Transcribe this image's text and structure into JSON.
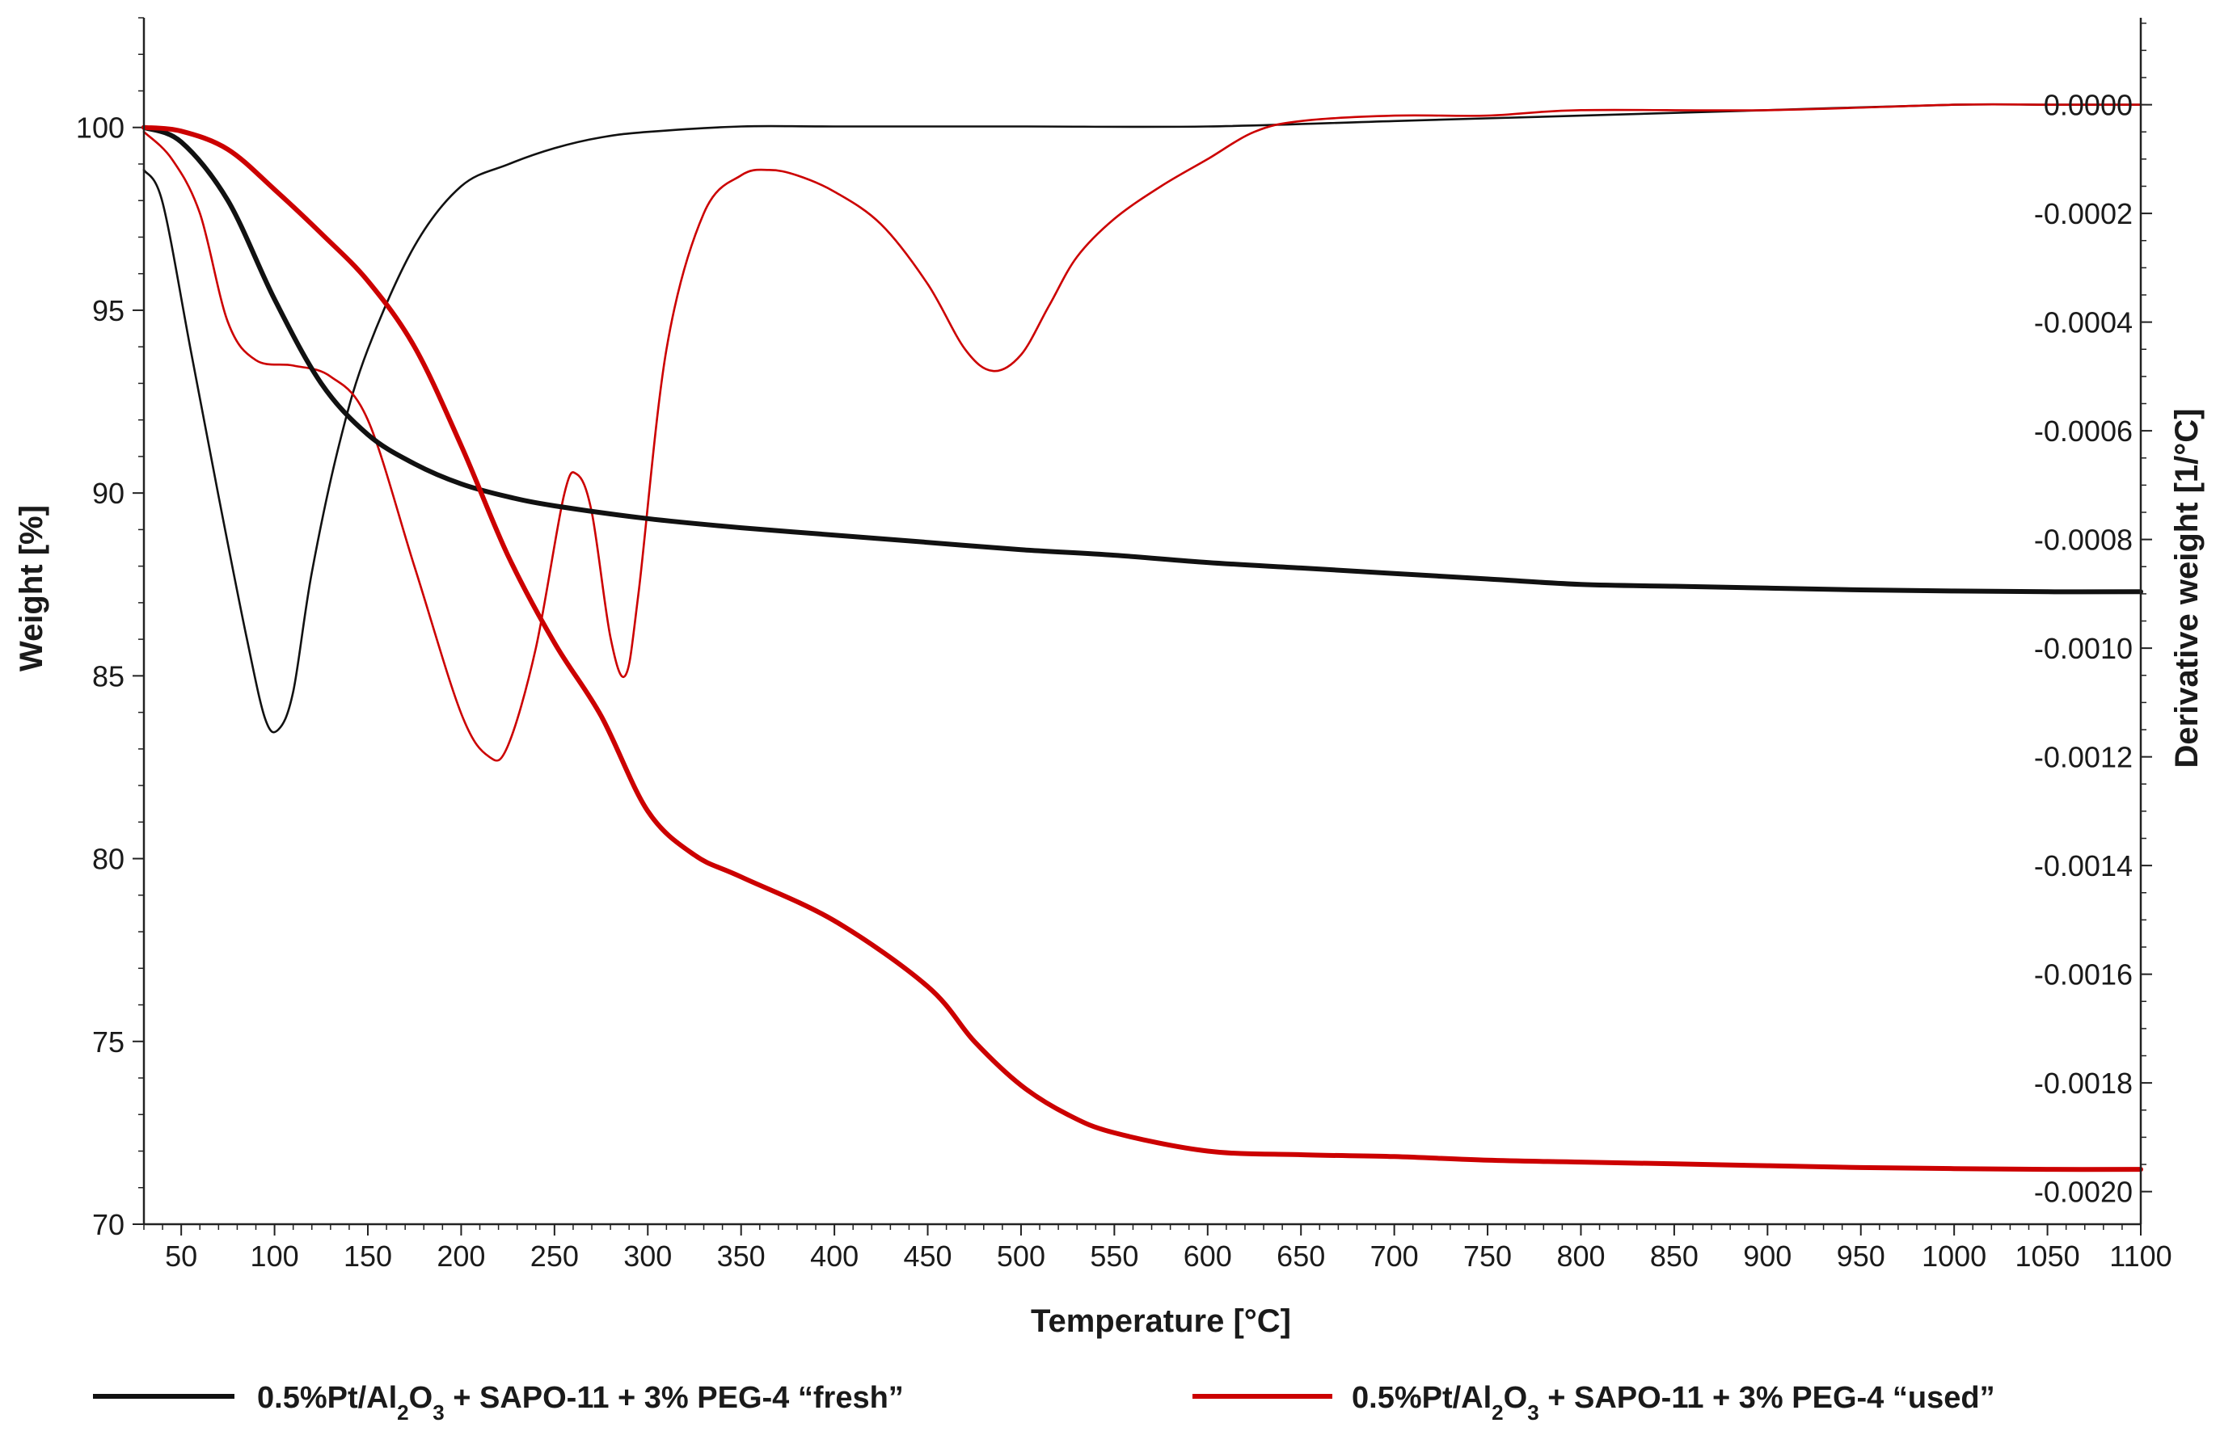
{
  "chart_data": {
    "type": "line",
    "title": "",
    "xlabel": "Temperature [°C]",
    "ylabel_left": "Weight [%]",
    "ylabel_right": "Derivative weight [1/°C]",
    "xlim": [
      30,
      1100
    ],
    "ylim_left": [
      70,
      103
    ],
    "ylim_right": [
      -0.00206,
      0.00016
    ],
    "x_ticks": [
      50,
      100,
      150,
      200,
      250,
      300,
      350,
      400,
      450,
      500,
      550,
      600,
      650,
      700,
      750,
      800,
      850,
      900,
      950,
      1000,
      1050,
      1100
    ],
    "y_left_ticks": [
      70,
      75,
      80,
      85,
      90,
      95,
      100
    ],
    "y_right_ticks": [
      0.0,
      -0.0002,
      -0.0004,
      -0.0006,
      -0.0008,
      -0.001,
      -0.0012,
      -0.0014,
      -0.0016,
      -0.0018,
      -0.002
    ],
    "y_right_tick_labels": [
      "0.0000",
      "-0.0002",
      "-0.0004",
      "-0.0006",
      "-0.0008",
      "-0.0010",
      "-0.0012",
      "-0.0014",
      "-0.0016",
      "-0.0018",
      "-0.0020"
    ],
    "legend_position": "bottom",
    "series": [
      {
        "name": "0.5%Pt/Al2O3 + SAPO-11 + 3% PEG-4 “fresh” (weight)",
        "axis": "left",
        "color": "#111111",
        "width": "thick",
        "x": [
          30,
          50,
          75,
          100,
          125,
          150,
          175,
          200,
          225,
          250,
          300,
          350,
          400,
          450,
          500,
          550,
          600,
          650,
          700,
          750,
          800,
          850,
          900,
          950,
          1000,
          1050,
          1100
        ],
        "y": [
          100.0,
          99.6,
          98.0,
          95.3,
          93.0,
          91.6,
          90.8,
          90.25,
          89.9,
          89.65,
          89.3,
          89.05,
          88.85,
          88.65,
          88.45,
          88.3,
          88.1,
          87.95,
          87.8,
          87.65,
          87.5,
          87.45,
          87.4,
          87.35,
          87.32,
          87.3,
          87.3
        ]
      },
      {
        "name": "0.5%Pt/Al2O3 + SAPO-11 + 3% PEG-4 “used” (weight)",
        "axis": "left",
        "color": "#cc0000",
        "width": "thick",
        "x": [
          30,
          50,
          75,
          100,
          125,
          150,
          175,
          200,
          225,
          250,
          275,
          300,
          325,
          350,
          400,
          450,
          475,
          500,
          525,
          550,
          600,
          650,
          700,
          750,
          800,
          850,
          900,
          950,
          1000,
          1050,
          1100
        ],
        "y": [
          100.0,
          99.9,
          99.4,
          98.3,
          97.1,
          95.8,
          94.0,
          91.3,
          88.3,
          85.9,
          83.9,
          81.3,
          80.1,
          79.5,
          78.3,
          76.5,
          75.0,
          73.8,
          73.0,
          72.5,
          72.0,
          71.9,
          71.85,
          71.75,
          71.7,
          71.65,
          71.6,
          71.55,
          71.52,
          71.5,
          71.5
        ]
      },
      {
        "name": "0.5%Pt/Al2O3 + SAPO-11 + 3% PEG-4 “fresh” (derivative)",
        "axis": "right",
        "color": "#111111",
        "width": "thin",
        "x": [
          30,
          40,
          55,
          70,
          85,
          95,
          102,
          110,
          120,
          135,
          150,
          175,
          200,
          225,
          250,
          275,
          300,
          350,
          400,
          500,
          600,
          700,
          800,
          900,
          1000,
          1050,
          1100
        ],
        "y": [
          -0.00012,
          -0.00018,
          -0.00045,
          -0.00072,
          -0.00098,
          -0.00113,
          -0.00115,
          -0.00108,
          -0.00086,
          -0.00062,
          -0.00045,
          -0.00026,
          -0.00015,
          -0.00011,
          -8e-05,
          -6e-05,
          -5e-05,
          -4e-05,
          -4e-05,
          -4e-05,
          -4e-05,
          -3e-05,
          -2e-05,
          -1e-05,
          0.0,
          0.0,
          0.0
        ]
      },
      {
        "name": "0.5%Pt/Al2O3 + SAPO-11 + 3% PEG-4 “used” (derivative)",
        "axis": "right",
        "color": "#cc0000",
        "width": "thin",
        "x": [
          30,
          45,
          60,
          75,
          90,
          110,
          130,
          150,
          175,
          200,
          215,
          225,
          240,
          255,
          262,
          270,
          280,
          288,
          295,
          310,
          330,
          350,
          365,
          380,
          400,
          425,
          450,
          470,
          485,
          500,
          515,
          530,
          550,
          575,
          600,
          625,
          650,
          700,
          750,
          800,
          900,
          1000,
          1050,
          1100
        ],
        "y": [
          -5e-05,
          -0.0001,
          -0.0002,
          -0.0004,
          -0.00047,
          -0.00048,
          -0.0005,
          -0.00058,
          -0.00085,
          -0.00112,
          -0.0012,
          -0.00118,
          -0.001,
          -0.00072,
          -0.00068,
          -0.00075,
          -0.00098,
          -0.00105,
          -0.0009,
          -0.00045,
          -0.0002,
          -0.00013,
          -0.00012,
          -0.00013,
          -0.00016,
          -0.00022,
          -0.00033,
          -0.00045,
          -0.00049,
          -0.00046,
          -0.00037,
          -0.00028,
          -0.00021,
          -0.00015,
          -0.0001,
          -5e-05,
          -3e-05,
          -2e-05,
          -2e-05,
          -1e-05,
          -1e-05,
          0.0,
          0.0,
          0.0
        ]
      }
    ]
  },
  "legend": {
    "fresh": {
      "prefix": "0.5%Pt/Al",
      "sub1": "2",
      "mid": "O",
      "sub2": "3",
      "suffix": " + SAPO-11 + 3% PEG-4 “fresh”",
      "color": "#111111"
    },
    "used": {
      "prefix": "0.5%Pt/Al",
      "sub1": "2",
      "mid": "O",
      "sub2": "3",
      "suffix": " + SAPO-11 + 3% PEG-4 “used”",
      "color": "#cc0000"
    }
  }
}
